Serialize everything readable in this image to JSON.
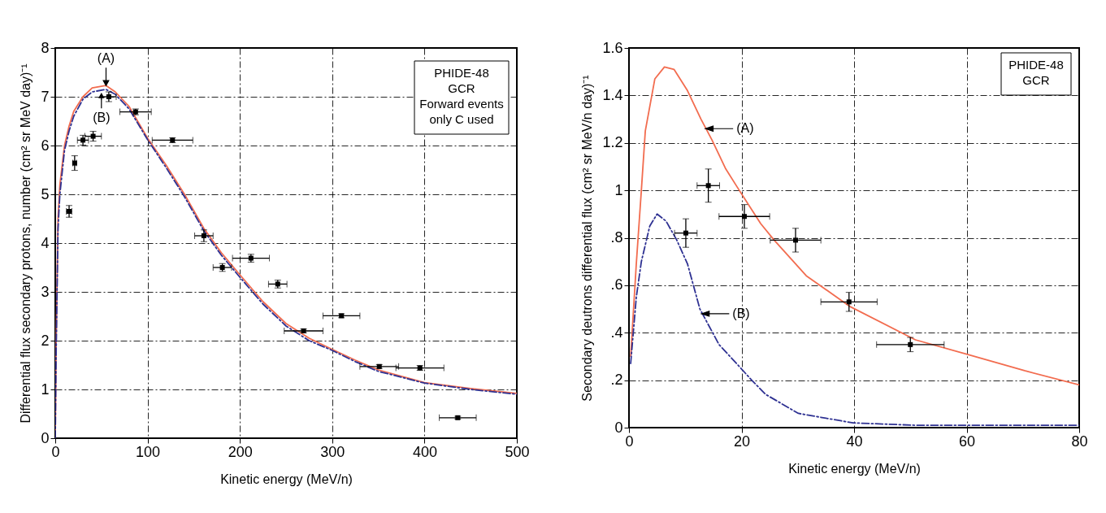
{
  "chart_data": [
    {
      "type": "line",
      "xlabel": "Kinetic energy (MeV/n)",
      "ylabel": "Differential flux secondary protons, number (cm² sr MeV day)⁻¹",
      "xlim": [
        0,
        500
      ],
      "ylim": [
        0,
        8
      ],
      "xticks": [
        0,
        100,
        200,
        300,
        400,
        500
      ],
      "yticks": [
        0,
        1,
        2,
        3,
        4,
        5,
        6,
        7,
        8
      ],
      "grid": true,
      "x": [
        0,
        1,
        3,
        5,
        10,
        15,
        20,
        30,
        40,
        55,
        65,
        80,
        100,
        120,
        140,
        161,
        180,
        200,
        225,
        250,
        275,
        300,
        325,
        350,
        375,
        400,
        450,
        500
      ],
      "series": [
        {
          "color": "#f26c4f",
          "line_style": "solid",
          "values": [
            0,
            2,
            4.5,
            5.2,
            6.0,
            6.4,
            6.7,
            7.0,
            7.18,
            7.23,
            7.1,
            6.8,
            6.15,
            5.6,
            5.0,
            4.3,
            3.8,
            3.35,
            2.8,
            2.35,
            2.05,
            1.82,
            1.6,
            1.4,
            1.27,
            1.14,
            1.02,
            0.92
          ]
        },
        {
          "color": "#2e3192",
          "line_style": "dashed",
          "values": [
            0,
            1.8,
            4.3,
            5.0,
            5.9,
            6.3,
            6.6,
            6.95,
            7.1,
            7.15,
            7.05,
            6.75,
            6.12,
            5.55,
            4.95,
            4.25,
            3.75,
            3.3,
            2.75,
            2.3,
            2.0,
            1.8,
            1.57,
            1.37,
            1.25,
            1.13,
            1.0,
            0.9
          ]
        },
        {
          "type": "scatter",
          "color": "#000000",
          "marker": "square",
          "x": [
            15,
            21,
            30,
            41,
            58,
            87,
            127,
            161,
            181,
            212,
            241,
            269,
            310,
            351,
            395,
            436
          ],
          "values": [
            4.65,
            5.64,
            6.11,
            6.19,
            7.0,
            6.69,
            6.11,
            4.15,
            3.5,
            3.69,
            3.16,
            2.2,
            2.51,
            1.47,
            1.44,
            0.42
          ],
          "errors": [
            0.12,
            0.15,
            0.1,
            0.1,
            0.1,
            0.06,
            0.05,
            0.12,
            0.08,
            0.08,
            0.08,
            0.04,
            0.04,
            0.04,
            0.05,
            0.03
          ],
          "xerrors": [
            3,
            2,
            6,
            9,
            8,
            17,
            22,
            10,
            10,
            20,
            10,
            21,
            20,
            21,
            26,
            20
          ]
        }
      ],
      "annotations": [
        {
          "text": "(A)",
          "x": 55,
          "y": 7.23
        },
        {
          "text": "(B)",
          "x": 50,
          "y": 7.13
        },
        "PHIDE-48",
        "GCR",
        "Forward events",
        "only C used"
      ]
    },
    {
      "type": "line",
      "xlabel": "Kinetic energy (MeV/n)",
      "ylabel": "Secondary deutrons differential flux (cm² sr MeV/n day)⁻¹",
      "xlim": [
        0,
        80
      ],
      "ylim": [
        0,
        1.6
      ],
      "xticks": [
        0,
        20,
        40,
        60,
        80
      ],
      "yticks": [
        0,
        {
          "value": 0.2,
          "label": ".2"
        },
        {
          "value": 0.4,
          "label": ".4"
        },
        {
          "value": 0.6,
          "label": ".6"
        },
        {
          "value": 0.8,
          "label": ".8"
        },
        1,
        1.2,
        1.4,
        1.6
      ],
      "grid": true,
      "series": [
        {
          "color": "#f26c4f",
          "line_style": "solid",
          "x": [
            0.3,
            1.3,
            2.2,
            2.9,
            4.6,
            6.3,
            8,
            10.4,
            12.8,
            14.8,
            17.2,
            19.6,
            23.4,
            25.8,
            31.5,
            39.3,
            50.9,
            60,
            70.3,
            80
          ],
          "values": [
            0.3,
            0.69,
            1.0,
            1.25,
            1.47,
            1.52,
            1.51,
            1.42,
            1.3,
            1.21,
            1.09,
            1.0,
            0.86,
            0.79,
            0.64,
            0.51,
            0.37,
            0.31,
            0.24,
            0.18
          ]
        },
        {
          "color": "#2e3192",
          "line_style": "dashed",
          "x": [
            0.3,
            1.3,
            2.2,
            3.7,
            5,
            6.6,
            8.5,
            10.4,
            12.6,
            16,
            19.9,
            21.8,
            24.3,
            30.1,
            39.8,
            50.9,
            80
          ],
          "values": [
            0.27,
            0.55,
            0.7,
            0.85,
            0.9,
            0.87,
            0.79,
            0.69,
            0.5,
            0.35,
            0.25,
            0.2,
            0.14,
            0.06,
            0.02,
            0.01,
            0.01
          ]
        },
        {
          "type": "scatter",
          "color": "#000000",
          "marker": "square",
          "x": [
            10.1,
            14.1,
            20.5,
            29.6,
            39.1,
            50.0
          ],
          "values": [
            0.82,
            1.02,
            0.89,
            0.79,
            0.53,
            0.35
          ],
          "errors": [
            0.06,
            0.07,
            0.05,
            0.05,
            0.04,
            0.03
          ],
          "xerrors": [
            2,
            2,
            4.5,
            4.5,
            5,
            6
          ]
        }
      ],
      "annotations": [
        {
          "text": "(A)",
          "x": 13.6,
          "y": 1.26
        },
        {
          "text": "(B)",
          "x": 12.9,
          "y": 0.48
        },
        "PHIDE-48",
        "GCR"
      ]
    }
  ]
}
